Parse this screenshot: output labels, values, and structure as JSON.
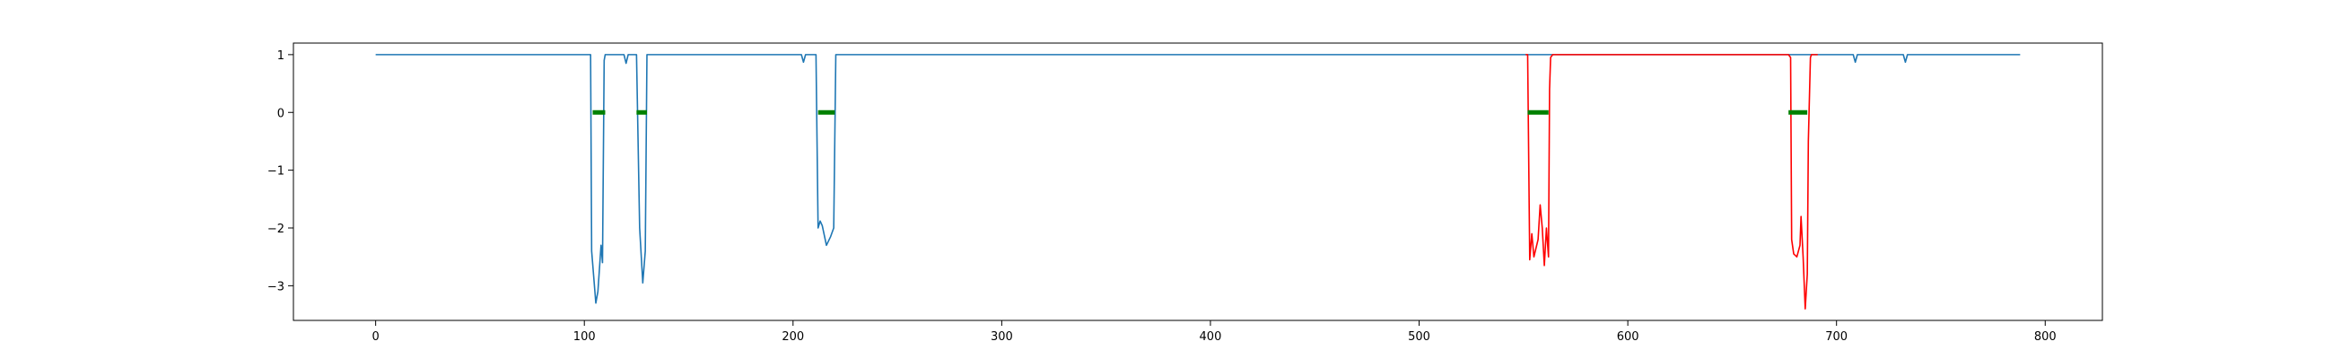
{
  "chart_data": {
    "type": "line",
    "title": "",
    "xlabel": "",
    "ylabel": "",
    "xlim": [
      -39.4,
      827.4
    ],
    "ylim": [
      -3.6,
      1.2
    ],
    "grid": false,
    "legend": "none",
    "x_ticks": [
      0,
      100,
      200,
      300,
      400,
      500,
      600,
      700,
      800
    ],
    "x_tick_labels": [
      "0",
      "100",
      "200",
      "300",
      "400",
      "500",
      "600",
      "700",
      "800"
    ],
    "y_ticks": [
      1,
      0,
      -1,
      -2,
      -3
    ],
    "y_tick_labels": [
      "1",
      "0",
      "−1",
      "−2",
      "−3"
    ],
    "series": [
      {
        "color": "#1f77b4",
        "width": 1.6,
        "points": [
          [
            0,
            1
          ],
          [
            103,
            1
          ],
          [
            103.5,
            -2.4
          ],
          [
            105.5,
            -3.3
          ],
          [
            106.5,
            -3.1
          ],
          [
            108,
            -2.3
          ],
          [
            108.7,
            -2.6
          ],
          [
            109.5,
            0.9
          ],
          [
            110,
            1
          ],
          [
            119,
            1
          ],
          [
            120,
            0.85
          ],
          [
            121,
            1
          ],
          [
            125,
            1
          ],
          [
            126.5,
            -2.0
          ],
          [
            128,
            -2.95
          ],
          [
            129.2,
            -2.4
          ],
          [
            130,
            1
          ],
          [
            204,
            1
          ],
          [
            205,
            0.87
          ],
          [
            206,
            1
          ],
          [
            211,
            1
          ],
          [
            212,
            -2.0
          ],
          [
            213,
            -1.88
          ],
          [
            214,
            -1.96
          ],
          [
            216,
            -2.3
          ],
          [
            218,
            -2.15
          ],
          [
            219.5,
            -2.0
          ],
          [
            220.5,
            1
          ],
          [
            552,
            1
          ],
          [
            564,
            1
          ],
          [
            677,
            1
          ],
          [
            691,
            1
          ],
          [
            708,
            1
          ],
          [
            709,
            0.87
          ],
          [
            710,
            1
          ],
          [
            732,
            1
          ],
          [
            733,
            0.87
          ],
          [
            734,
            1
          ],
          [
            788,
            1
          ]
        ]
      },
      {
        "color": "#ff0000",
        "width": 1.6,
        "points": [
          [
            551,
            1
          ],
          [
            552,
            1
          ],
          [
            553,
            -2.55
          ],
          [
            554,
            -2.1
          ],
          [
            555,
            -2.5
          ],
          [
            556,
            -2.35
          ],
          [
            557,
            -2.2
          ],
          [
            558,
            -1.6
          ],
          [
            559,
            -2.0
          ],
          [
            560,
            -2.65
          ],
          [
            561,
            -2.0
          ],
          [
            562,
            -2.5
          ],
          [
            562.5,
            0.4
          ],
          [
            563,
            0.95
          ],
          [
            564,
            1
          ],
          [
            566,
            1
          ],
          [
            677,
            1
          ],
          [
            678,
            0.95
          ],
          [
            678.5,
            -2.2
          ],
          [
            679.5,
            -2.45
          ],
          [
            681,
            -2.5
          ],
          [
            682.5,
            -2.3
          ],
          [
            683,
            -1.8
          ],
          [
            684,
            -2.5
          ],
          [
            685,
            -3.4
          ],
          [
            686,
            -2.8
          ],
          [
            686.5,
            -0.5
          ],
          [
            687.5,
            0.95
          ],
          [
            688,
            1
          ],
          [
            691,
            1
          ]
        ]
      },
      {
        "color": "#008000",
        "width": 5,
        "segments": [
          [
            104,
            110
          ],
          [
            125,
            130
          ],
          [
            212,
            220
          ],
          [
            552,
            562
          ],
          [
            677,
            686
          ]
        ],
        "y": 0
      }
    ]
  }
}
